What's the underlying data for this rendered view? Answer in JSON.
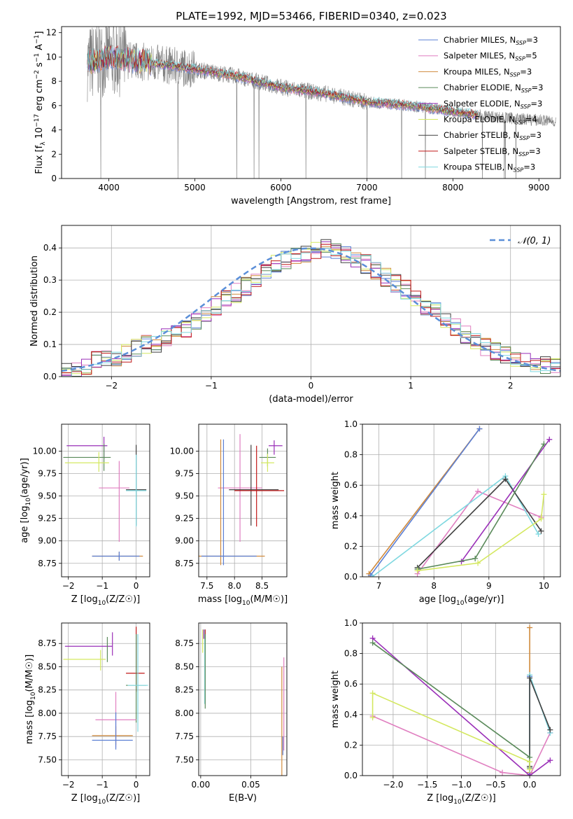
{
  "figure": {
    "title": "PLATE=1992, MJD=53466, FIBERID=0340, z=0.023"
  },
  "chart_data": [
    {
      "type": "line",
      "id": "spectrum",
      "xlabel": "wavelength [Angstrom, rest frame]",
      "ylabel": "Flux [f_λ 10^-17 erg cm^-2 s^-1 A^-1]",
      "xlim": [
        3450,
        9250
      ],
      "ylim": [
        0,
        12.5
      ],
      "xticks": [
        4000,
        5000,
        6000,
        7000,
        8000,
        9000
      ],
      "yticks": [
        0,
        2,
        4,
        6,
        8,
        10,
        12
      ],
      "grid": false,
      "legend_position": "top-right",
      "data_x_range": [
        3750,
        9200
      ],
      "continuum": [
        [
          3750,
          9.5
        ],
        [
          4000,
          10.0
        ],
        [
          4300,
          9.7
        ],
        [
          4700,
          9.3
        ],
        [
          5000,
          9.0
        ],
        [
          5500,
          8.4
        ],
        [
          6000,
          7.5
        ],
        [
          6500,
          7.0
        ],
        [
          7000,
          6.3
        ],
        [
          7500,
          6.0
        ],
        [
          8000,
          5.5
        ],
        [
          8300,
          5.2
        ],
        [
          8600,
          5.0
        ],
        [
          9200,
          4.7
        ]
      ],
      "model_x_range": [
        3750,
        8300
      ],
      "series": [
        {
          "name": "Chabrier MILES, N_SSP=3",
          "color": "#5b7fd4"
        },
        {
          "name": "Salpeter MILES, N_SSP=5",
          "color": "#e07fc0"
        },
        {
          "name": "Kroupa MILES, N_SSP=3",
          "color": "#d08a3c"
        },
        {
          "name": "Chabrier ELODIE, N_SSP=3",
          "color": "#5a8a5a"
        },
        {
          "name": "Salpeter ELODIE, N_SSP=3",
          "color": "#9a2fb8"
        },
        {
          "name": "Kroupa ELODIE, N_SSP=4",
          "color": "#d4e860"
        },
        {
          "name": "Chabrier STELIB, N_SSP=3",
          "color": "#404040"
        },
        {
          "name": "Salpeter STELIB, N_SSP=3",
          "color": "#c01818"
        },
        {
          "name": "Kroupa STELIB, N_SSP=3",
          "color": "#7fd8e0"
        }
      ],
      "data_color": "#808080"
    },
    {
      "type": "histogram",
      "id": "residuals",
      "xlabel": "(data-model)/error",
      "ylabel": "Normed distribution",
      "xlim": [
        -2.5,
        2.5
      ],
      "ylim": [
        0,
        0.47
      ],
      "xticks": [
        -2,
        -1,
        0,
        1,
        2
      ],
      "yticks": [
        0.0,
        0.1,
        0.2,
        0.3,
        0.4
      ],
      "grid": true,
      "legend_position": "top-right",
      "legend_label": "N(0,1)",
      "reference_curve": {
        "name": "N(0,1)",
        "mean": 0,
        "sigma": 1,
        "color": "#5b8fd8",
        "dashed": true
      },
      "bin_width": 0.1,
      "bin_start": -2.5,
      "approx_values": [
        0.015,
        0.02,
        0.03,
        0.05,
        0.055,
        0.06,
        0.07,
        0.09,
        0.1,
        0.1,
        0.12,
        0.13,
        0.15,
        0.17,
        0.19,
        0.22,
        0.24,
        0.26,
        0.28,
        0.31,
        0.33,
        0.35,
        0.36,
        0.37,
        0.38,
        0.39,
        0.4,
        0.39,
        0.38,
        0.37,
        0.35,
        0.33,
        0.31,
        0.29,
        0.27,
        0.24,
        0.22,
        0.2,
        0.17,
        0.15,
        0.13,
        0.11,
        0.09,
        0.08,
        0.07,
        0.06,
        0.05,
        0.04,
        0.035,
        0.03
      ]
    },
    {
      "type": "errorbar",
      "id": "age-vs-Z",
      "xlabel": "Z [log10(Z/Z☉)]",
      "ylabel": "age  [log10(age/yr)]",
      "xlim": [
        -2.2,
        0.4
      ],
      "ylim": [
        8.6,
        10.3
      ],
      "xticks": [
        -2,
        -1,
        0
      ],
      "yticks": [
        8.75,
        9.0,
        9.25,
        9.5,
        9.75,
        10.0
      ],
      "grid": true,
      "points": [
        {
          "x": -0.95,
          "y": 10.06,
          "xerr": [
            1.1,
            0.1
          ],
          "yerr": [
            0.15,
            0.1
          ],
          "color": "#9a2fb8"
        },
        {
          "x": -0.95,
          "y": 9.93,
          "xerr": [
            1.2,
            0.2
          ],
          "yerr": [
            0.15,
            0.15
          ],
          "color": "#5a8a5a"
        },
        {
          "x": -1.1,
          "y": 9.87,
          "xerr": [
            1.0,
            0.3
          ],
          "yerr": [
            0.1,
            0.12
          ],
          "color": "#d4e860"
        },
        {
          "x": -0.5,
          "y": 9.59,
          "xerr": [
            0.6,
            0.3
          ],
          "yerr": [
            0.6,
            0.3
          ],
          "color": "#e07fc0"
        },
        {
          "x": 0.0,
          "y": 9.57,
          "xerr": [
            0.3,
            0.3
          ],
          "yerr": [
            0.4,
            0.5
          ],
          "color": "#404040"
        },
        {
          "x": 0.0,
          "y": 9.56,
          "xerr": [
            0.3,
            0.3
          ],
          "yerr": [
            0.4,
            0.4
          ],
          "color": "#7fd8e0"
        },
        {
          "x": -0.5,
          "y": 8.83,
          "xerr": [
            0.8,
            0.7
          ],
          "yerr": [
            0.05,
            0.05
          ],
          "color": "#d08a3c"
        },
        {
          "x": -0.5,
          "y": 8.83,
          "xerr": [
            0.8,
            0.6
          ],
          "yerr": [
            0.05,
            0.05
          ],
          "color": "#5b7fd4"
        }
      ]
    },
    {
      "type": "errorbar",
      "id": "age-vs-mass",
      "xlabel": "mass [log10(M/M☉)]",
      "ylabel": "",
      "xlim": [
        7.35,
        8.95
      ],
      "ylim": [
        8.6,
        10.3
      ],
      "xticks": [
        7.5,
        8.0,
        8.5
      ],
      "yticks": [
        8.75,
        9.0,
        9.25,
        9.5,
        9.75,
        10.0
      ],
      "grid": true,
      "points": [
        {
          "x": 8.72,
          "y": 10.06,
          "xerr": [
            0.1,
            0.15
          ],
          "yerr": [
            0.1,
            0.06
          ],
          "color": "#9a2fb8"
        },
        {
          "x": 8.6,
          "y": 9.93,
          "xerr": [
            0.15,
            0.15
          ],
          "yerr": [
            0.1,
            0.1
          ],
          "color": "#5a8a5a"
        },
        {
          "x": 8.6,
          "y": 9.87,
          "xerr": [
            0.12,
            0.12
          ],
          "yerr": [
            0.1,
            0.1
          ],
          "color": "#d4e860"
        },
        {
          "x": 8.1,
          "y": 9.59,
          "xerr": [
            0.4,
            0.4
          ],
          "yerr": [
            0.6,
            0.6
          ],
          "color": "#e07fc0"
        },
        {
          "x": 8.3,
          "y": 9.57,
          "xerr": [
            0.4,
            0.5
          ],
          "yerr": [
            0.4,
            0.5
          ],
          "color": "#404040"
        },
        {
          "x": 8.4,
          "y": 9.56,
          "xerr": [
            0.4,
            0.5
          ],
          "yerr": [
            0.4,
            0.5
          ],
          "color": "#c01818"
        },
        {
          "x": 7.75,
          "y": 8.83,
          "xerr": [
            0.4,
            0.8
          ],
          "yerr": [
            0.1,
            1.3
          ],
          "color": "#d08a3c"
        },
        {
          "x": 7.8,
          "y": 8.83,
          "xerr": [
            0.4,
            0.6
          ],
          "yerr": [
            0.1,
            1.3
          ],
          "color": "#5b7fd4"
        }
      ]
    },
    {
      "type": "line",
      "id": "mass-weight-vs-age",
      "xlabel": "age  [log10(age/yr)]",
      "ylabel": "mass weight",
      "xlim": [
        6.7,
        10.3
      ],
      "ylim": [
        0,
        1
      ],
      "xticks": [
        7,
        8,
        9,
        10
      ],
      "yticks": [
        0.0,
        0.2,
        0.4,
        0.6,
        0.8,
        1.0
      ],
      "grid": true,
      "series": [
        {
          "color": "#d08a3c",
          "x": [
            6.82,
            8.83
          ],
          "y": [
            0.02,
            0.97
          ]
        },
        {
          "color": "#5b7fd4",
          "x": [
            6.85,
            8.83
          ],
          "y": [
            0.01,
            0.97
          ]
        },
        {
          "color": "#e07fc0",
          "x": [
            7.7,
            8.8,
            9.95
          ],
          "y": [
            0.02,
            0.56,
            0.39
          ]
        },
        {
          "color": "#7fd8e0",
          "x": [
            6.88,
            9.3,
            9.9
          ],
          "y": [
            0.0,
            0.66,
            0.28
          ]
        },
        {
          "color": "#404040",
          "x": [
            7.7,
            9.3,
            9.95
          ],
          "y": [
            0.06,
            0.64,
            0.3
          ]
        },
        {
          "color": "#9a2fb8",
          "x": [
            8.5,
            10.1
          ],
          "y": [
            0.1,
            0.9
          ]
        },
        {
          "color": "#5a8a5a",
          "x": [
            7.7,
            8.75,
            10.0
          ],
          "y": [
            0.05,
            0.12,
            0.87
          ]
        },
        {
          "color": "#d4e860",
          "x": [
            7.7,
            8.8,
            9.95,
            10.0
          ],
          "y": [
            0.04,
            0.09,
            0.38,
            0.54
          ]
        }
      ]
    },
    {
      "type": "errorbar",
      "id": "mass-vs-Z",
      "xlabel": "Z [log10(Z/Z☉)]",
      "ylabel": "mass [log10(M/M☉)]",
      "xlim": [
        -2.2,
        0.4
      ],
      "ylim": [
        7.33,
        8.97
      ],
      "xticks": [
        -2,
        -1,
        0
      ],
      "yticks": [
        7.5,
        7.75,
        8.0,
        8.25,
        8.5,
        8.75
      ],
      "grid": true,
      "points": [
        {
          "x": -0.7,
          "y": 8.72,
          "xerr": [
            1.4,
            0.0
          ],
          "yerr": [
            0.1,
            0.15
          ],
          "color": "#9a2fb8"
        },
        {
          "x": -0.85,
          "y": 8.7,
          "xerr": [
            0.0,
            0.0
          ],
          "yerr": [
            0.15,
            0.12
          ],
          "color": "#5a8a5a"
        },
        {
          "x": -1.05,
          "y": 8.58,
          "xerr": [
            1.1,
            0.15
          ],
          "yerr": [
            0.12,
            0.1
          ],
          "color": "#d4e860"
        },
        {
          "x": 0.0,
          "y": 8.43,
          "xerr": [
            0.3,
            0.25
          ],
          "yerr": [
            0.2,
            0.5
          ],
          "color": "#c01818"
        },
        {
          "x": 0.0,
          "y": 8.3,
          "xerr": [
            0.3,
            0.3
          ],
          "yerr": [
            0.4,
            0.55
          ],
          "color": "#5a8a5a"
        },
        {
          "x": 0.05,
          "y": 8.3,
          "xerr": [
            0.3,
            0.3
          ],
          "yerr": [
            0.5,
            0.55
          ],
          "color": "#7fd8e0"
        },
        {
          "x": -0.6,
          "y": 7.93,
          "xerr": [
            0.6,
            0.6
          ],
          "yerr": [
            0.3,
            0.3
          ],
          "color": "#e07fc0"
        },
        {
          "x": -0.6,
          "y": 7.76,
          "xerr": [
            0.7,
            0.5
          ],
          "yerr": [
            0.1,
            0.1
          ],
          "color": "#d08a3c"
        },
        {
          "x": -0.6,
          "y": 7.71,
          "xerr": [
            0.7,
            0.5
          ],
          "yerr": [
            0.1,
            0.3
          ],
          "color": "#5b7fd4"
        }
      ]
    },
    {
      "type": "errorbar",
      "id": "mass-vs-ebv",
      "xlabel": "E(B-V)",
      "ylabel": "",
      "xlim": [
        -0.002,
        0.086
      ],
      "ylim": [
        7.33,
        8.97
      ],
      "xticks": [
        0.0,
        0.05
      ],
      "yticks": [
        7.5,
        7.75,
        8.0,
        8.25,
        8.5,
        8.75
      ],
      "grid": true,
      "points": [
        {
          "x": 0.002,
          "y": 8.8,
          "yerr": [
            0.15,
            0.1
          ],
          "color": "#d4e860"
        },
        {
          "x": 0.003,
          "y": 8.85,
          "yerr": [
            0.05,
            0.05
          ],
          "color": "#9a2fb8"
        },
        {
          "x": 0.004,
          "y": 8.5,
          "yerr": [
            0.4,
            0.4
          ],
          "color": "#7fd8e0"
        },
        {
          "x": 0.0045,
          "y": 8.85,
          "yerr": [
            0.05,
            0.05
          ],
          "color": "#c01818"
        },
        {
          "x": 0.0045,
          "y": 8.5,
          "yerr": [
            0.45,
            0.35
          ],
          "color": "#5a8a5a"
        },
        {
          "x": 0.081,
          "y": 7.9,
          "yerr": [
            0.6,
            0.6
          ],
          "color": "#d08a3c"
        },
        {
          "x": 0.083,
          "y": 8.1,
          "yerr": [
            0.5,
            0.5
          ],
          "color": "#e07fc0"
        },
        {
          "x": 0.082,
          "y": 7.65,
          "yerr": [
            0.1,
            0.1
          ],
          "color": "#5b7fd4"
        }
      ]
    },
    {
      "type": "line",
      "id": "mass-weight-vs-Z",
      "xlabel": "Z [log10(Z/Z☉)]",
      "ylabel": "mass weight",
      "xlim": [
        -2.45,
        0.45
      ],
      "ylim": [
        0,
        1
      ],
      "xticks": [
        -2.0,
        -1.5,
        -1.0,
        -0.5,
        0.0
      ],
      "yticks": [
        0.0,
        0.2,
        0.4,
        0.6,
        0.8,
        1.0
      ],
      "grid": true,
      "series": [
        {
          "color": "#d08a3c",
          "x": [
            0.0,
            0.0
          ],
          "y": [
            0.02,
            0.97
          ]
        },
        {
          "color": "#5b7fd4",
          "x": [
            0.0,
            0.0
          ],
          "y": [
            0.01,
            0.65
          ]
        },
        {
          "color": "#e07fc0",
          "x": [
            -2.3,
            -0.4,
            0.0,
            0.3
          ],
          "y": [
            0.39,
            0.02,
            0.0,
            0.28
          ]
        },
        {
          "color": "#7fd8e0",
          "x": [
            0.0,
            0.0,
            0.3
          ],
          "y": [
            0.0,
            0.66,
            0.28
          ]
        },
        {
          "color": "#404040",
          "x": [
            0.0,
            0.0,
            0.3
          ],
          "y": [
            0.06,
            0.64,
            0.3
          ]
        },
        {
          "color": "#9a2fb8",
          "x": [
            -2.3,
            0.0,
            0.3
          ],
          "y": [
            0.9,
            0.0,
            0.1
          ]
        },
        {
          "color": "#5a8a5a",
          "x": [
            -2.3,
            0.0,
            0.0
          ],
          "y": [
            0.87,
            0.12,
            0.05
          ]
        },
        {
          "color": "#d4e860",
          "x": [
            -2.3,
            -2.3,
            0.0,
            0.0
          ],
          "y": [
            0.38,
            0.54,
            0.09,
            0.04
          ]
        }
      ]
    }
  ]
}
